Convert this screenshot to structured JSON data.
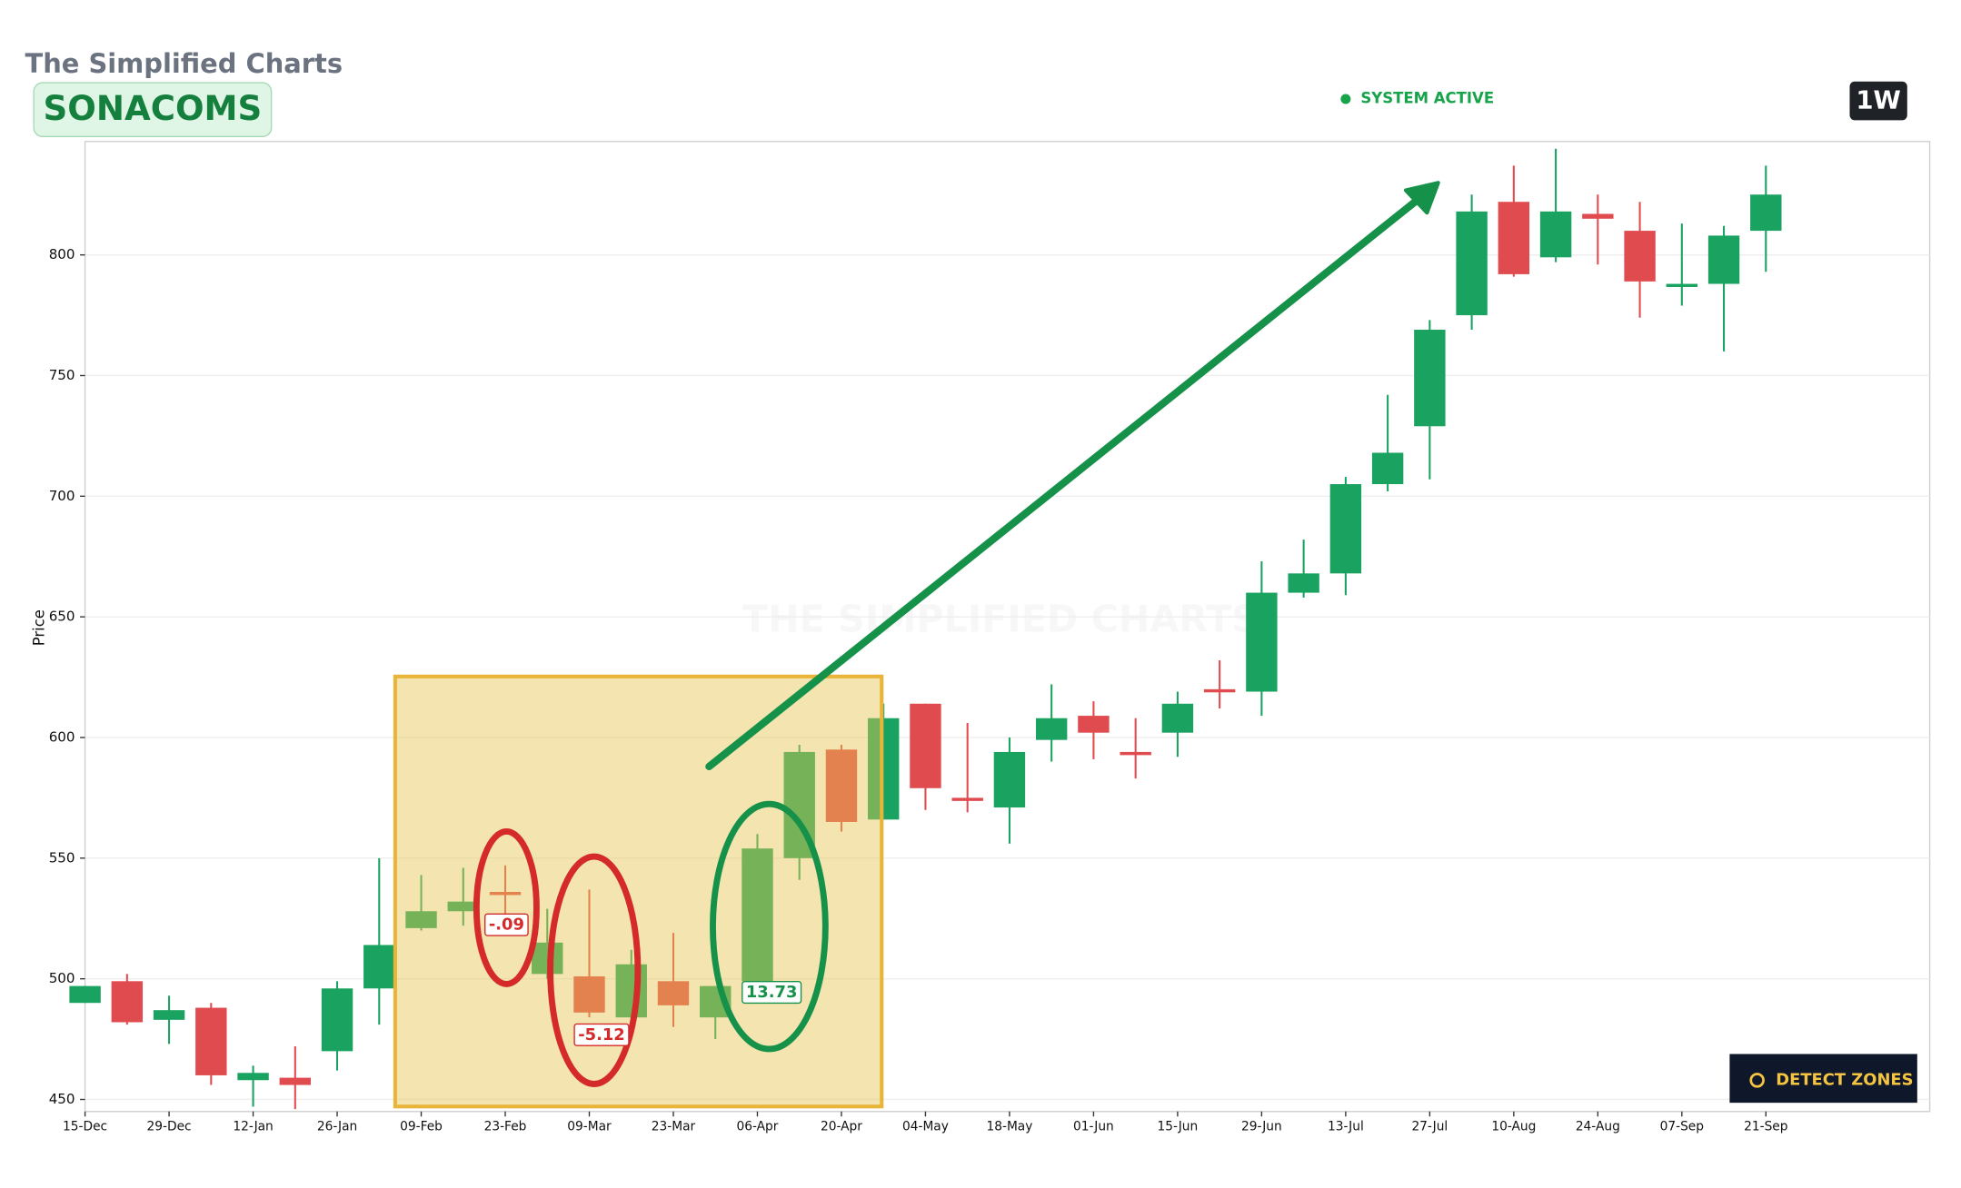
{
  "header": {
    "brand": "The Simplified Charts",
    "symbol": "SONACOMS",
    "status": "SYSTEM ACTIVE",
    "timeframe": "1W",
    "action": "DETECT ZONES"
  },
  "chart_data": {
    "type": "candlestick",
    "y_label": "Price",
    "watermark": "THE SIMPLIFIED CHARTS",
    "categories": [
      "15-Dec",
      null,
      "29-Dec",
      null,
      "12-Jan",
      null,
      "26-Jan",
      null,
      "09-Feb",
      null,
      "23-Feb",
      null,
      "09-Mar",
      null,
      "23-Mar",
      null,
      "06-Apr",
      null,
      "20-Apr",
      null,
      "04-May",
      null,
      "18-May",
      null,
      "01-Jun",
      null,
      "15-Jun",
      null,
      "29-Jun",
      null,
      "13-Jul",
      null,
      "27-Jul",
      null,
      "10-Aug",
      null,
      "24-Aug",
      null,
      "07-Sep",
      null,
      "21-Sep"
    ],
    "open": [
      490,
      499,
      483,
      488,
      458,
      459,
      470,
      496,
      521,
      528,
      536,
      502,
      501,
      484,
      499,
      484,
      499,
      550,
      595,
      566,
      614,
      575,
      571,
      599,
      609,
      594,
      602,
      620,
      619,
      660,
      668,
      705,
      729,
      775,
      822,
      799,
      817,
      810,
      787,
      788,
      810
    ],
    "high": [
      497,
      502,
      493,
      490,
      464,
      472,
      499,
      550,
      543,
      546,
      547,
      529,
      537,
      512,
      519,
      497,
      560,
      597,
      597,
      614,
      614,
      606,
      600,
      622,
      615,
      608,
      619,
      632,
      673,
      682,
      708,
      742,
      773,
      825,
      837,
      844,
      825,
      822,
      813,
      812,
      837
    ],
    "low": [
      490,
      481,
      473,
      456,
      447,
      446,
      462,
      481,
      520,
      522,
      525,
      500,
      484,
      483,
      480,
      475,
      498,
      541,
      561,
      566,
      570,
      569,
      556,
      590,
      591,
      583,
      592,
      612,
      609,
      658,
      659,
      702,
      707,
      769,
      791,
      797,
      796,
      774,
      779,
      760,
      793
    ],
    "close": [
      497,
      482,
      487,
      460,
      461,
      456,
      496,
      514,
      528,
      532,
      535,
      515,
      486,
      506,
      489,
      497,
      554,
      594,
      565,
      608,
      579,
      574,
      594,
      608,
      602,
      593,
      614,
      619,
      660,
      668,
      705,
      718,
      769,
      818,
      792,
      818,
      815,
      789,
      788,
      808,
      825
    ],
    "up_color": "#1aa260",
    "down_color": "#e04b4f",
    "ylim": [
      445,
      847
    ],
    "yticks": [
      450,
      500,
      550,
      600,
      650,
      700,
      750,
      800
    ],
    "grid": true,
    "annotations": [
      "-.09",
      "-5.12",
      "13.73"
    ]
  }
}
